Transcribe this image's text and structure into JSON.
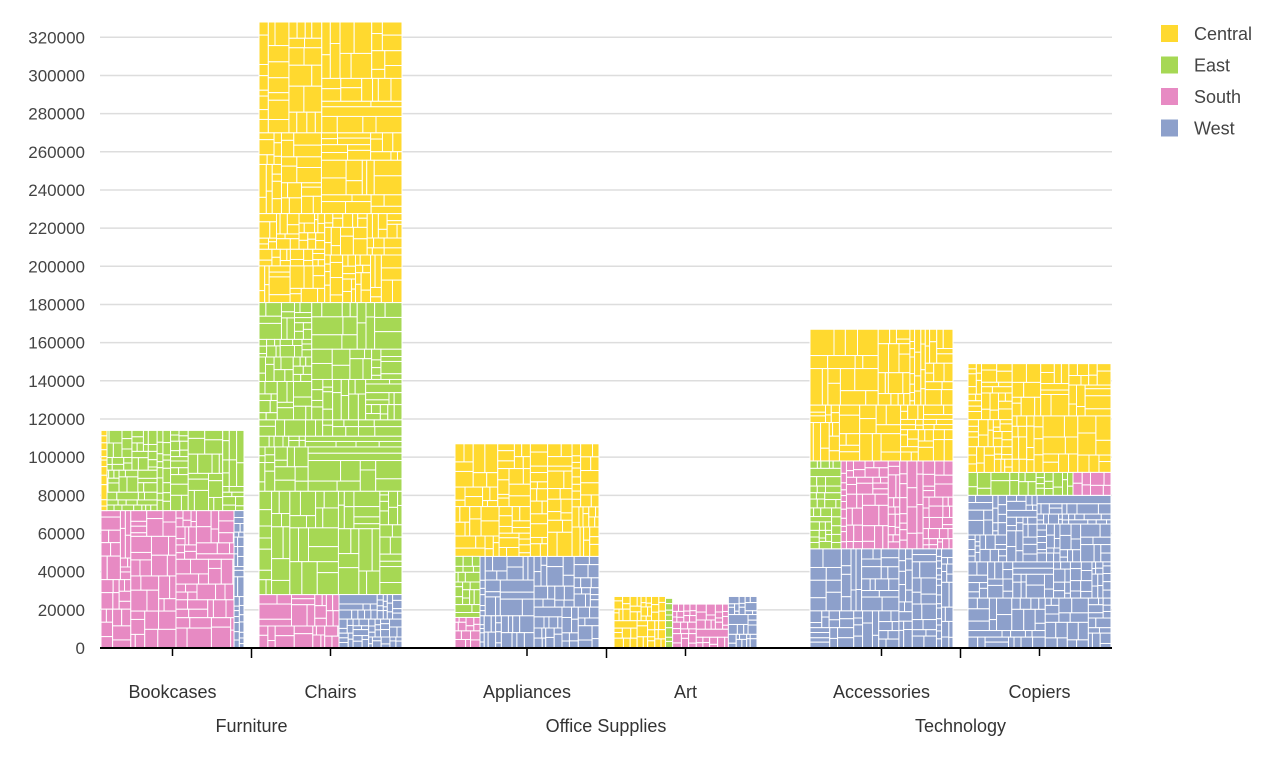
{
  "chart_data": {
    "type": "bar",
    "subtype": "stacked-treemap-bar",
    "title": "",
    "xlabel": "",
    "ylabel": "",
    "ylim": [
      0,
      330000
    ],
    "yticks": [
      0,
      20000,
      40000,
      60000,
      80000,
      100000,
      120000,
      140000,
      160000,
      180000,
      200000,
      220000,
      240000,
      260000,
      280000,
      300000,
      320000
    ],
    "grid": true,
    "legend_position": "top-right",
    "series": [
      {
        "name": "Central",
        "color": "#ffd92f"
      },
      {
        "name": "East",
        "color": "#a6d854"
      },
      {
        "name": "South",
        "color": "#e78ac3"
      },
      {
        "name": "West",
        "color": "#8da0cb"
      }
    ],
    "groups": [
      {
        "name": "Furniture",
        "bars": [
          {
            "category": "Bookcases",
            "stack": [
              "South",
              "East"
            ],
            "values": [
              72000,
              42000
            ],
            "inner": [
              {
                "series": "Central",
                "value": 0,
                "note": "thin sliver"
              },
              {
                "series": "West",
                "value": 0,
                "note": "thin sliver"
              }
            ]
          },
          {
            "category": "Chairs",
            "stack": [
              "South",
              "East",
              "Central"
            ],
            "values": [
              28000,
              153000,
              147000
            ],
            "inner": [
              {
                "series": "West",
                "value": 0,
                "note": "shares bottom band with South"
              }
            ]
          }
        ]
      },
      {
        "name": "Office Supplies",
        "bars": [
          {
            "category": "Appliances",
            "stack": [
              "West",
              "Central"
            ],
            "values": [
              48000,
              59000
            ],
            "inner": [
              {
                "series": "East",
                "value": 0,
                "note": "shares bottom band"
              },
              {
                "series": "South",
                "value": 0,
                "note": "shares bottom band"
              }
            ]
          },
          {
            "category": "Art",
            "stack": [
              "Mixed"
            ],
            "values": [
              27000
            ],
            "inner": []
          }
        ]
      },
      {
        "name": "Technology",
        "bars": [
          {
            "category": "Accessories",
            "stack": [
              "West",
              "South",
              "Central"
            ],
            "values": [
              52000,
              46000,
              69000
            ],
            "inner": [
              {
                "series": "East",
                "value": 0,
                "note": "shares middle band"
              }
            ]
          },
          {
            "category": "Copiers",
            "stack": [
              "West",
              "East",
              "Central"
            ],
            "values": [
              80000,
              12000,
              57000
            ],
            "inner": [
              {
                "series": "South",
                "value": 0,
                "note": "shares middle band"
              }
            ]
          }
        ]
      }
    ]
  }
}
